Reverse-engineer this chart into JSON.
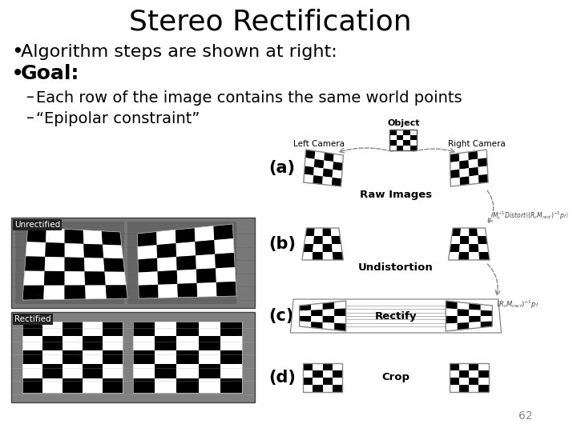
{
  "title": "Stereo Rectification",
  "title_fontsize": 26,
  "background_color": "#ffffff",
  "text_color": "#000000",
  "bullet1": "Algorithm steps are shown at right:",
  "bullet2": "Goal:",
  "sub1": "Each row of the image contains the same world points",
  "sub2": "“Epipolar constraint”",
  "slide_number": "62",
  "bullet_fontsize": 16,
  "sub_fontsize": 14,
  "font_family": "DejaVu Sans",
  "label_a": "(a)",
  "label_b": "(b)",
  "label_c": "(c)",
  "label_d": "(d)",
  "raw_images_text": "Raw Images",
  "undistortion_text": "Undistortion",
  "rectify_text": "Rectify",
  "crop_text": "Crop",
  "object_text": "Object",
  "left_cam_text": "Left Camera",
  "right_cam_text": "Right Camera",
  "unrectified_text": "Unrectified",
  "rectified_text": "Rectified"
}
